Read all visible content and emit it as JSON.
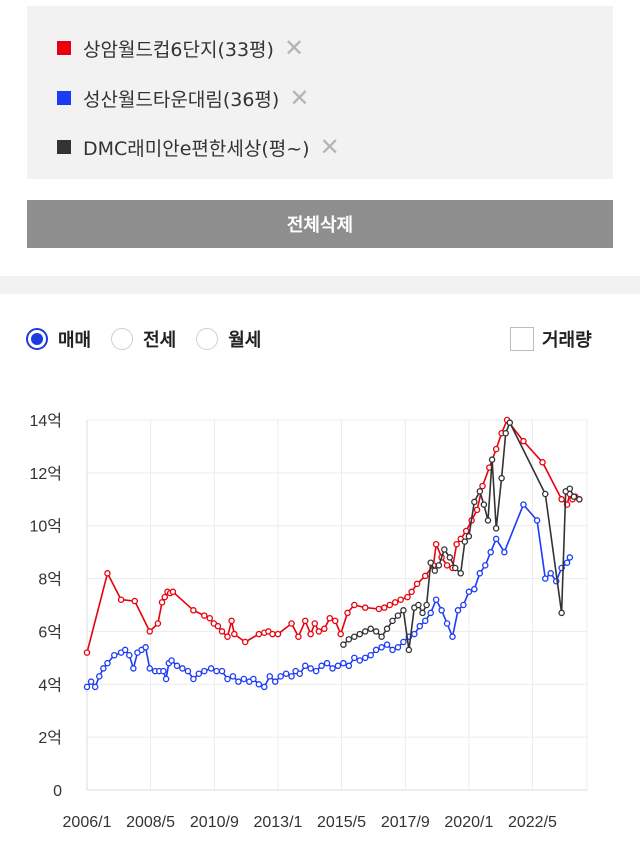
{
  "compare": {
    "items": [
      {
        "label": "상암월드컵6단지(33평)",
        "color": "#e8000b"
      },
      {
        "label": "성산월드타운대림(36평)",
        "color": "#1d3bf5"
      },
      {
        "label": "DMC래미안e편한세상(평~)",
        "color": "#333333"
      }
    ],
    "remove_icon": "close-icon",
    "remove_glyph": "✕",
    "delete_all_label": "전체삭제"
  },
  "filters": {
    "deal_types": [
      {
        "label": "매매",
        "selected": true
      },
      {
        "label": "전세",
        "selected": false
      },
      {
        "label": "월세",
        "selected": false
      }
    ],
    "volume_label": "거래량",
    "volume_checked": false
  },
  "chart_data": {
    "type": "line",
    "x_ticks": [
      "2006/1",
      "2008/5",
      "2010/9",
      "2013/1",
      "2015/5",
      "2017/9",
      "2020/1",
      "2022/5"
    ],
    "x_tick_values": [
      2006.0,
      2008.33,
      2010.67,
      2013.0,
      2015.33,
      2017.67,
      2020.0,
      2022.33
    ],
    "xlim": [
      2006.0,
      2024.33
    ],
    "y_ticks": [
      "0",
      "2억",
      "4억",
      "6억",
      "8억",
      "10억",
      "12억",
      "14억"
    ],
    "ylim": [
      0,
      14
    ],
    "y_unit": "억",
    "grid": true,
    "series": [
      {
        "name": "상암월드컵6단지(33평)",
        "color": "#e8000b",
        "x": [
          2006.0,
          2006.75,
          2007.25,
          2007.75,
          2008.3,
          2008.6,
          2008.75,
          2008.85,
          2008.95,
          2009.05,
          2009.15,
          2009.9,
          2010.3,
          2010.5,
          2010.65,
          2010.8,
          2010.95,
          2011.15,
          2011.3,
          2011.4,
          2011.8,
          2012.3,
          2012.5,
          2012.65,
          2012.8,
          2013.0,
          2013.5,
          2013.75,
          2014.0,
          2014.2,
          2014.35,
          2014.5,
          2014.7,
          2014.9,
          2015.1,
          2015.3,
          2015.55,
          2015.8,
          2016.2,
          2016.7,
          2016.9,
          2017.1,
          2017.3,
          2017.5,
          2017.75,
          2017.9,
          2018.1,
          2018.4,
          2018.7,
          2018.8,
          2019.0,
          2019.2,
          2019.4,
          2019.55,
          2019.7,
          2019.9,
          2020.1,
          2020.3,
          2020.5,
          2020.75,
          2021.0,
          2021.2,
          2021.4,
          2022.0,
          2022.7,
          2023.4,
          2023.6,
          2023.7,
          2023.8,
          2023.9,
          2024.05
        ],
        "values": [
          5.2,
          8.2,
          7.2,
          7.15,
          6.0,
          6.3,
          7.1,
          7.3,
          7.5,
          7.45,
          7.5,
          6.8,
          6.6,
          6.5,
          6.3,
          6.2,
          6.0,
          5.8,
          6.4,
          5.9,
          5.6,
          5.9,
          5.95,
          6.0,
          5.9,
          5.9,
          6.3,
          5.8,
          6.4,
          5.9,
          6.3,
          6.0,
          6.1,
          6.5,
          6.4,
          5.9,
          6.7,
          7.0,
          6.9,
          6.85,
          6.9,
          7.0,
          7.1,
          7.2,
          7.3,
          7.5,
          7.8,
          8.1,
          8.5,
          9.3,
          8.8,
          8.5,
          8.4,
          9.3,
          9.5,
          9.8,
          10.2,
          10.6,
          11.5,
          12.2,
          12.9,
          13.5,
          14.0,
          13.2,
          12.4,
          11.0,
          10.8,
          11.2,
          11.0,
          11.1,
          11.0
        ]
      },
      {
        "name": "성산월드타운대림(36평)",
        "color": "#1d3bf5",
        "x": [
          2006.0,
          2006.15,
          2006.3,
          2006.45,
          2006.6,
          2006.75,
          2007.0,
          2007.25,
          2007.4,
          2007.55,
          2007.7,
          2007.85,
          2008.0,
          2008.15,
          2008.3,
          2008.5,
          2008.65,
          2008.8,
          2008.9,
          2009.0,
          2009.1,
          2009.3,
          2009.5,
          2009.7,
          2009.9,
          2010.1,
          2010.3,
          2010.55,
          2010.75,
          2010.95,
          2011.15,
          2011.35,
          2011.55,
          2011.75,
          2011.95,
          2012.1,
          2012.3,
          2012.5,
          2012.7,
          2012.9,
          2013.1,
          2013.3,
          2013.5,
          2013.65,
          2013.8,
          2014.0,
          2014.2,
          2014.4,
          2014.6,
          2014.8,
          2015.0,
          2015.2,
          2015.4,
          2015.6,
          2015.8,
          2016.0,
          2016.2,
          2016.4,
          2016.6,
          2016.8,
          2017.0,
          2017.2,
          2017.4,
          2017.6,
          2017.8,
          2018.0,
          2018.2,
          2018.4,
          2018.6,
          2018.8,
          2019.0,
          2019.2,
          2019.4,
          2019.6,
          2019.8,
          2020.0,
          2020.2,
          2020.4,
          2020.6,
          2020.8,
          2021.0,
          2021.3,
          2022.0,
          2022.5,
          2022.8,
          2023.0,
          2023.2,
          2023.4,
          2023.6,
          2023.7
        ],
        "values": [
          3.9,
          4.1,
          3.9,
          4.3,
          4.6,
          4.8,
          5.1,
          5.2,
          5.3,
          5.1,
          4.6,
          5.2,
          5.3,
          5.4,
          4.6,
          4.5,
          4.5,
          4.5,
          4.2,
          4.8,
          4.9,
          4.7,
          4.6,
          4.5,
          4.2,
          4.4,
          4.5,
          4.6,
          4.5,
          4.5,
          4.2,
          4.3,
          4.1,
          4.2,
          4.1,
          4.2,
          4.0,
          3.9,
          4.3,
          4.1,
          4.3,
          4.4,
          4.3,
          4.5,
          4.4,
          4.7,
          4.6,
          4.5,
          4.7,
          4.8,
          4.6,
          4.7,
          4.8,
          4.7,
          5.0,
          4.9,
          5.0,
          5.1,
          5.3,
          5.4,
          5.5,
          5.3,
          5.4,
          5.6,
          5.8,
          5.9,
          6.2,
          6.4,
          6.7,
          7.2,
          6.8,
          6.3,
          5.8,
          6.8,
          7.0,
          7.5,
          7.6,
          8.2,
          8.5,
          9.0,
          9.5,
          9.0,
          10.8,
          10.2,
          8.0,
          8.2,
          7.9,
          8.4,
          8.6,
          8.8
        ]
      },
      {
        "name": "DMC래미안e편한세상(평~)",
        "color": "#333333",
        "x": [
          2015.4,
          2015.6,
          2015.8,
          2016.0,
          2016.2,
          2016.4,
          2016.6,
          2016.8,
          2017.0,
          2017.2,
          2017.4,
          2017.6,
          2017.8,
          2018.0,
          2018.15,
          2018.3,
          2018.45,
          2018.6,
          2018.75,
          2018.9,
          2019.1,
          2019.3,
          2019.5,
          2019.7,
          2019.85,
          2020.0,
          2020.2,
          2020.4,
          2020.55,
          2020.7,
          2020.85,
          2021.0,
          2021.2,
          2021.35,
          2021.5,
          2022.8,
          2023.4,
          2023.55,
          2023.7,
          2023.85,
          2024.05
        ],
        "values": [
          5.5,
          5.7,
          5.8,
          5.9,
          6.0,
          6.1,
          6.0,
          5.8,
          6.1,
          6.4,
          6.6,
          6.8,
          5.3,
          6.9,
          7.0,
          6.7,
          7.0,
          8.6,
          8.3,
          8.5,
          9.1,
          8.8,
          8.4,
          8.2,
          9.4,
          9.6,
          10.9,
          11.3,
          10.8,
          10.2,
          12.5,
          9.9,
          11.8,
          13.5,
          13.9,
          11.2,
          6.7,
          11.3,
          11.4,
          11.1,
          11.0
        ]
      }
    ]
  }
}
